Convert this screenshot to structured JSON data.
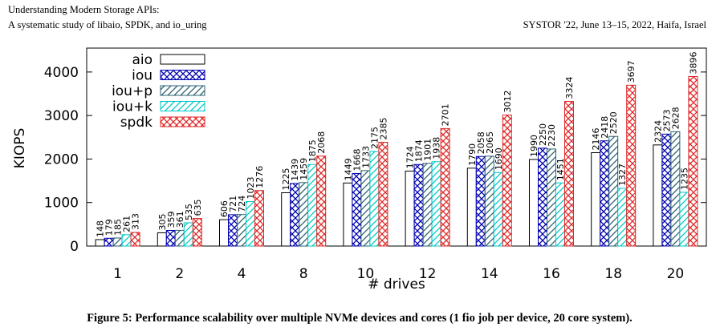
{
  "header": {
    "left_line1": "Understanding Modern Storage APIs:",
    "left_line2": "A systematic study of libaio, SPDK, and io_uring",
    "right": "SYSTOR '22, June 13–15, 2022, Haifa, Israel"
  },
  "caption": "Figure 5: Performance scalability over multiple NVMe devices and cores (1 fio job per device, 20 core system).",
  "chart_data": {
    "type": "bar",
    "x_label": "# drives",
    "y_label": "KIOPS",
    "categories": [
      "1",
      "2",
      "4",
      "8",
      "10",
      "12",
      "14",
      "16",
      "18",
      "20"
    ],
    "series": [
      {
        "name": "aio",
        "color": "#000000",
        "pattern": "none",
        "values": [
          148,
          305,
          606,
          1225,
          1449,
          1724,
          1790,
          1990,
          2146,
          2324
        ]
      },
      {
        "name": "iou",
        "color": "#0000b0",
        "pattern": "cross",
        "values": [
          179,
          359,
          721,
          1439,
          1668,
          1874,
          2058,
          2250,
          2418,
          2573
        ]
      },
      {
        "name": "iou+p",
        "color": "#2a6070",
        "pattern": "diagonal",
        "values": [
          185,
          361,
          724,
          1459,
          1733,
          1901,
          2065,
          2230,
          2520,
          2628
        ]
      },
      {
        "name": "iou+k",
        "color": "#00c8c8",
        "pattern": "diagonal",
        "values": [
          261,
          535,
          1023,
          1875,
          2175,
          1938,
          1690,
          1451,
          1327,
          1235
        ]
      },
      {
        "name": "spdk",
        "color": "#e02828",
        "pattern": "cross",
        "values": [
          313,
          635,
          1276,
          2068,
          2385,
          2701,
          3012,
          3324,
          3697,
          3896
        ]
      }
    ],
    "ylim": [
      0,
      4550
    ],
    "yticks": [
      0,
      1000,
      2000,
      3000,
      4000
    ],
    "legend": "upper-left"
  }
}
